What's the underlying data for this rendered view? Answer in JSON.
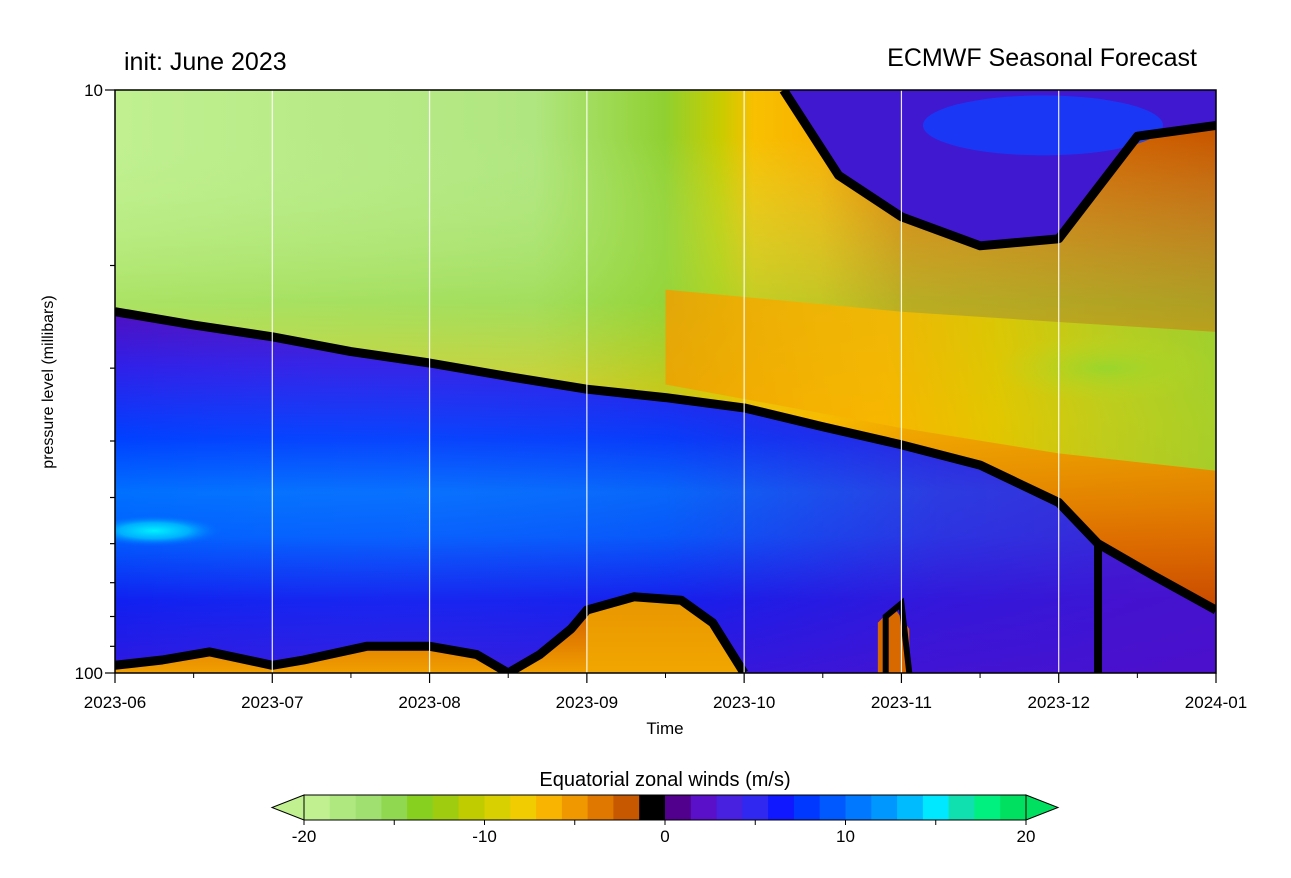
{
  "chart_data": {
    "type": "heatmap",
    "title_left": "init: June 2023",
    "title_right": "ECMWF Seasonal Forecast",
    "xlabel": "Time",
    "ylabel": "pressure level (millibars)",
    "x_ticks": [
      "2023-06",
      "2023-07",
      "2023-08",
      "2023-09",
      "2023-10",
      "2023-11",
      "2023-12",
      "2024-01"
    ],
    "y_scale": "log",
    "y_ticks": [
      "10",
      "100"
    ],
    "ylim": [
      100,
      10
    ],
    "colorbar": {
      "label": "Equatorial zonal winds (m/s)",
      "range": [
        -20,
        20
      ],
      "step": 2,
      "tick_labels": [
        "-20",
        "-10",
        "0",
        "10",
        "20"
      ],
      "colors": [
        "#c0f090",
        "#b0e880",
        "#a0e070",
        "#90d850",
        "#88d020",
        "#a0cc10",
        "#c0cc00",
        "#d8d000",
        "#f0cc00",
        "#f8b400",
        "#f09800",
        "#e07800",
        "#c85800",
        "#000000",
        "#50008c",
        "#5a10c8",
        "#4820e0",
        "#3028f0",
        "#1018ff",
        "#0038ff",
        "#0058ff",
        "#0078ff",
        "#0098ff",
        "#00bcff",
        "#00e8ff",
        "#10e0b0",
        "#00f080",
        "#00e060"
      ]
    },
    "zero_contour_mb": {
      "description": "approximate pressure level of the 0 m/s wind line",
      "upper_branch": [
        [
          0,
          24.0
        ],
        [
          0.5,
          25.3
        ],
        [
          1.0,
          26.5
        ],
        [
          1.5,
          28.1
        ],
        [
          2.0,
          29.4
        ],
        [
          2.5,
          31.0
        ],
        [
          3.0,
          32.6
        ],
        [
          3.5,
          33.7
        ],
        [
          4.0,
          35.1
        ],
        [
          4.5,
          37.8
        ],
        [
          5.0,
          40.6
        ],
        [
          5.5,
          44.0
        ],
        [
          6.0,
          51.0
        ],
        [
          6.25,
          60.0
        ],
        [
          6.6,
          68.0
        ],
        [
          7.0,
          78.0
        ]
      ],
      "lower_branch": [
        [
          0,
          97.0
        ],
        [
          0.3,
          95.0
        ],
        [
          0.6,
          92.0
        ],
        [
          1.0,
          97.0
        ],
        [
          1.2,
          95.0
        ],
        [
          1.6,
          90.0
        ],
        [
          2.0,
          90.0
        ],
        [
          2.3,
          93.0
        ],
        [
          2.5,
          100.0
        ],
        [
          2.7,
          93.0
        ],
        [
          2.9,
          84.0
        ],
        [
          3.0,
          78.0
        ],
        [
          3.3,
          74.0
        ],
        [
          3.6,
          75.0
        ],
        [
          3.8,
          82.0
        ],
        [
          4.0,
          100.0
        ]
      ],
      "top_branch": [
        [
          4.25,
          10.0
        ],
        [
          4.6,
          14.0
        ],
        [
          5.0,
          16.5
        ],
        [
          5.5,
          18.5
        ],
        [
          6.0,
          18.0
        ],
        [
          6.5,
          12.0
        ],
        [
          7.0,
          11.5
        ]
      ]
    },
    "fields": {
      "upper_easterly_max_ms": -20,
      "lower_westerly_max_ms": 16,
      "lower_westerly_core_mb": 57
    }
  }
}
